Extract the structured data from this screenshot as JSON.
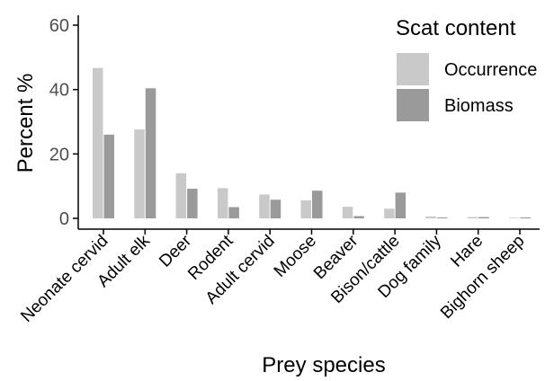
{
  "chart_data": {
    "type": "bar",
    "title": "",
    "xlabel": "Prey species",
    "ylabel": "Percent %",
    "ylim": [
      0,
      62
    ],
    "yticks": [
      0,
      20,
      40,
      60
    ],
    "grid": false,
    "legend": {
      "title": "Scat content",
      "position": "top-right"
    },
    "categories": [
      "Neonate cervid",
      "Adult elk",
      "Deer",
      "Rodent",
      "Adult cervid",
      "Moose",
      "Beaver",
      "Bison/cattle",
      "Dog family",
      "Hare",
      "Bighorn sheep"
    ],
    "series": [
      {
        "name": "Occurrence",
        "color": "#c9c9c9",
        "values": [
          46.7,
          27.6,
          14.0,
          9.4,
          7.4,
          5.6,
          3.6,
          3.0,
          0.6,
          0.4,
          0.2
        ]
      },
      {
        "name": "Biomass",
        "color": "#9a9a9a",
        "values": [
          26.0,
          40.4,
          9.2,
          3.5,
          5.8,
          8.6,
          0.7,
          8.0,
          0.3,
          0.4,
          0.3
        ]
      }
    ]
  }
}
